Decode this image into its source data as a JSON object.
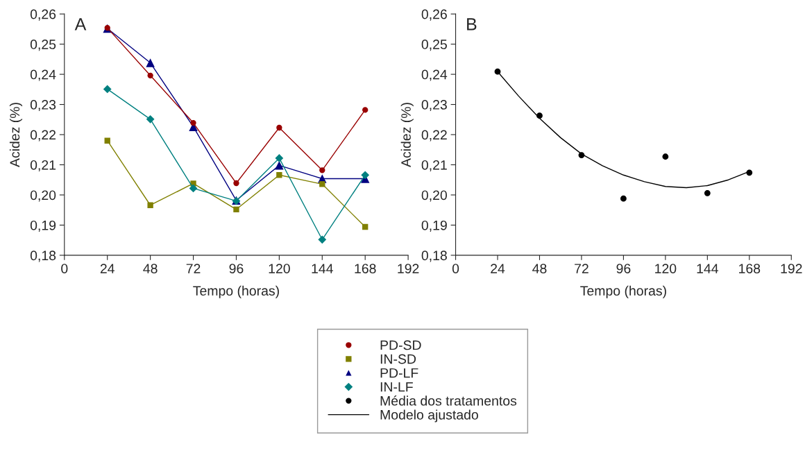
{
  "chart_data": [
    {
      "type": "line",
      "xlabel": "Tempo (horas)",
      "ylabel": "Acidez (%)",
      "annotations": [
        "A"
      ],
      "x": [
        24,
        48,
        72,
        96,
        120,
        144,
        168
      ],
      "series": [
        {
          "name": "PD-SD",
          "color": "#990000",
          "marker": "circle",
          "values": [
            0.2554,
            0.2396,
            0.2239,
            0.2039,
            0.2223,
            0.2082,
            0.2282
          ]
        },
        {
          "name": "IN-SD",
          "color": "#808000",
          "marker": "square",
          "values": [
            0.218,
            0.1966,
            0.2038,
            0.1952,
            0.2066,
            0.2036,
            0.1894
          ]
        },
        {
          "name": "PD-LF",
          "color": "#000080",
          "marker": "triangle",
          "values": [
            0.2552,
            0.2438,
            0.2226,
            0.1982,
            0.2098,
            0.2054,
            0.2054
          ]
        },
        {
          "name": "IN-LF",
          "color": "#008080",
          "marker": "diamond",
          "values": [
            0.2351,
            0.2251,
            0.2022,
            0.198,
            0.2122,
            0.1852,
            0.2066
          ]
        }
      ],
      "xlim": [
        0,
        192
      ],
      "xticks": [
        0,
        24,
        48,
        72,
        96,
        120,
        144,
        168,
        192
      ],
      "ylim": [
        0.18,
        0.26
      ],
      "yticks": [
        {
          "value": 0.18,
          "label": "0,18"
        },
        {
          "value": 0.19,
          "label": "0,19"
        },
        {
          "value": 0.2,
          "label": "0,20"
        },
        {
          "value": 0.21,
          "label": "0,21"
        },
        {
          "value": 0.22,
          "label": "0,22"
        },
        {
          "value": 0.23,
          "label": "0,23"
        },
        {
          "value": 0.24,
          "label": "0,24"
        },
        {
          "value": 0.25,
          "label": "0,25"
        },
        {
          "value": 0.26,
          "label": "0,26"
        }
      ],
      "grid": false,
      "legend": "bottom"
    },
    {
      "type": "scatter",
      "xlabel": "Tempo (horas)",
      "ylabel": "Acidez (%)",
      "annotations": [
        "B"
      ],
      "series": [
        {
          "name": "Média dos tratamentos",
          "type": "scatter",
          "color": "#000000",
          "marker": "circle",
          "x": [
            24,
            48,
            72,
            96,
            120,
            144,
            168
          ],
          "values": [
            0.2409,
            0.2263,
            0.2132,
            0.1988,
            0.2127,
            0.2006,
            0.2074
          ]
        },
        {
          "name": "Modelo ajustado",
          "type": "line",
          "color": "#000000",
          "marker": "none",
          "x": [
            24,
            36,
            48,
            60,
            72,
            84,
            96,
            108,
            120,
            132,
            144,
            156,
            168
          ],
          "values": [
            0.2409,
            0.2328,
            0.2254,
            0.219,
            0.2136,
            0.2097,
            0.2066,
            0.2044,
            0.2028,
            0.2024,
            0.2031,
            0.205,
            0.2078
          ]
        }
      ],
      "xlim": [
        0,
        192
      ],
      "xticks": [
        0,
        24,
        48,
        72,
        96,
        120,
        144,
        168,
        192
      ],
      "ylim": [
        0.18,
        0.26
      ],
      "yticks": [
        {
          "value": 0.18,
          "label": "0,18"
        },
        {
          "value": 0.19,
          "label": "0,19"
        },
        {
          "value": 0.2,
          "label": "0,20"
        },
        {
          "value": 0.21,
          "label": "0,21"
        },
        {
          "value": 0.22,
          "label": "0,22"
        },
        {
          "value": 0.23,
          "label": "0,23"
        },
        {
          "value": 0.24,
          "label": "0,24"
        },
        {
          "value": 0.25,
          "label": "0,25"
        },
        {
          "value": 0.26,
          "label": "0,26"
        }
      ],
      "grid": false,
      "legend": "bottom"
    }
  ]
}
